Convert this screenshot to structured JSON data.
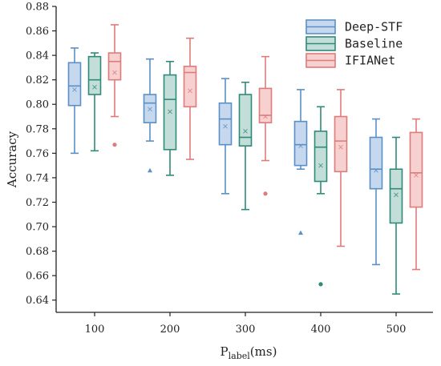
{
  "chart_data": {
    "type": "boxplot",
    "title": "",
    "xlabel": "P",
    "xlabel_sub": "label",
    "xlabel_unit": "(ms)",
    "ylabel": "Accuracy",
    "ylim": [
      0.63,
      0.88
    ],
    "yticks": [
      0.64,
      0.66,
      0.68,
      0.7,
      0.72,
      0.74,
      0.76,
      0.78,
      0.8,
      0.82,
      0.84,
      0.86,
      0.88
    ],
    "ytick_labels": [
      "0.64",
      "0.66",
      "0.68",
      "0.70",
      "0.72",
      "0.74",
      "0.76",
      "0.78",
      "0.80",
      "0.82",
      "0.84",
      "0.86",
      "0.88"
    ],
    "categories": [
      "100",
      "200",
      "300",
      "400",
      "500"
    ],
    "legend_position": "top-right",
    "grid": false,
    "series": [
      {
        "name": "Deep-STF",
        "fill": "#c5d8ee",
        "stroke": "#5b8fc7",
        "outlier_marker": "triangle",
        "boxes": [
          {
            "whislo": 0.76,
            "q1": 0.799,
            "med": 0.815,
            "q3": 0.834,
            "whishi": 0.846,
            "mean": 0.812,
            "fliers": []
          },
          {
            "whislo": 0.77,
            "q1": 0.785,
            "med": 0.801,
            "q3": 0.808,
            "whishi": 0.837,
            "mean": 0.796,
            "fliers": [
              0.746
            ]
          },
          {
            "whislo": 0.727,
            "q1": 0.767,
            "med": 0.788,
            "q3": 0.801,
            "whishi": 0.821,
            "mean": 0.782,
            "fliers": []
          },
          {
            "whislo": 0.747,
            "q1": 0.75,
            "med": 0.767,
            "q3": 0.786,
            "whishi": 0.812,
            "mean": 0.766,
            "fliers": [
              0.695
            ]
          },
          {
            "whislo": 0.669,
            "q1": 0.731,
            "med": 0.747,
            "q3": 0.773,
            "whishi": 0.788,
            "mean": 0.746,
            "fliers": []
          }
        ]
      },
      {
        "name": "Baseline",
        "fill": "#c3ded8",
        "stroke": "#2e8b7a",
        "outlier_marker": "circle",
        "boxes": [
          {
            "whislo": 0.762,
            "q1": 0.808,
            "med": 0.82,
            "q3": 0.839,
            "whishi": 0.842,
            "mean": 0.814,
            "fliers": []
          },
          {
            "whislo": 0.742,
            "q1": 0.763,
            "med": 0.804,
            "q3": 0.824,
            "whishi": 0.835,
            "mean": 0.794,
            "fliers": []
          },
          {
            "whislo": 0.714,
            "q1": 0.766,
            "med": 0.773,
            "q3": 0.808,
            "whishi": 0.818,
            "mean": 0.778,
            "fliers": []
          },
          {
            "whislo": 0.727,
            "q1": 0.737,
            "med": 0.765,
            "q3": 0.778,
            "whishi": 0.798,
            "mean": 0.75,
            "fliers": [
              0.653
            ]
          },
          {
            "whislo": 0.645,
            "q1": 0.703,
            "med": 0.731,
            "q3": 0.747,
            "whishi": 0.773,
            "mean": 0.726,
            "fliers": []
          }
        ]
      },
      {
        "name": "IFIANet",
        "fill": "#f7d0d0",
        "stroke": "#e07b7b",
        "outlier_marker": "circle",
        "boxes": [
          {
            "whislo": 0.79,
            "q1": 0.82,
            "med": 0.835,
            "q3": 0.842,
            "whishi": 0.865,
            "mean": 0.826,
            "fliers": [
              0.767
            ]
          },
          {
            "whislo": 0.755,
            "q1": 0.798,
            "med": 0.826,
            "q3": 0.831,
            "whishi": 0.854,
            "mean": 0.811,
            "fliers": []
          },
          {
            "whislo": 0.754,
            "q1": 0.785,
            "med": 0.791,
            "q3": 0.813,
            "whishi": 0.839,
            "mean": 0.79,
            "fliers": [
              0.727
            ]
          },
          {
            "whislo": 0.684,
            "q1": 0.745,
            "med": 0.77,
            "q3": 0.79,
            "whishi": 0.812,
            "mean": 0.765,
            "fliers": []
          },
          {
            "whislo": 0.665,
            "q1": 0.716,
            "med": 0.744,
            "q3": 0.777,
            "whishi": 0.788,
            "mean": 0.742,
            "fliers": []
          }
        ]
      }
    ]
  }
}
